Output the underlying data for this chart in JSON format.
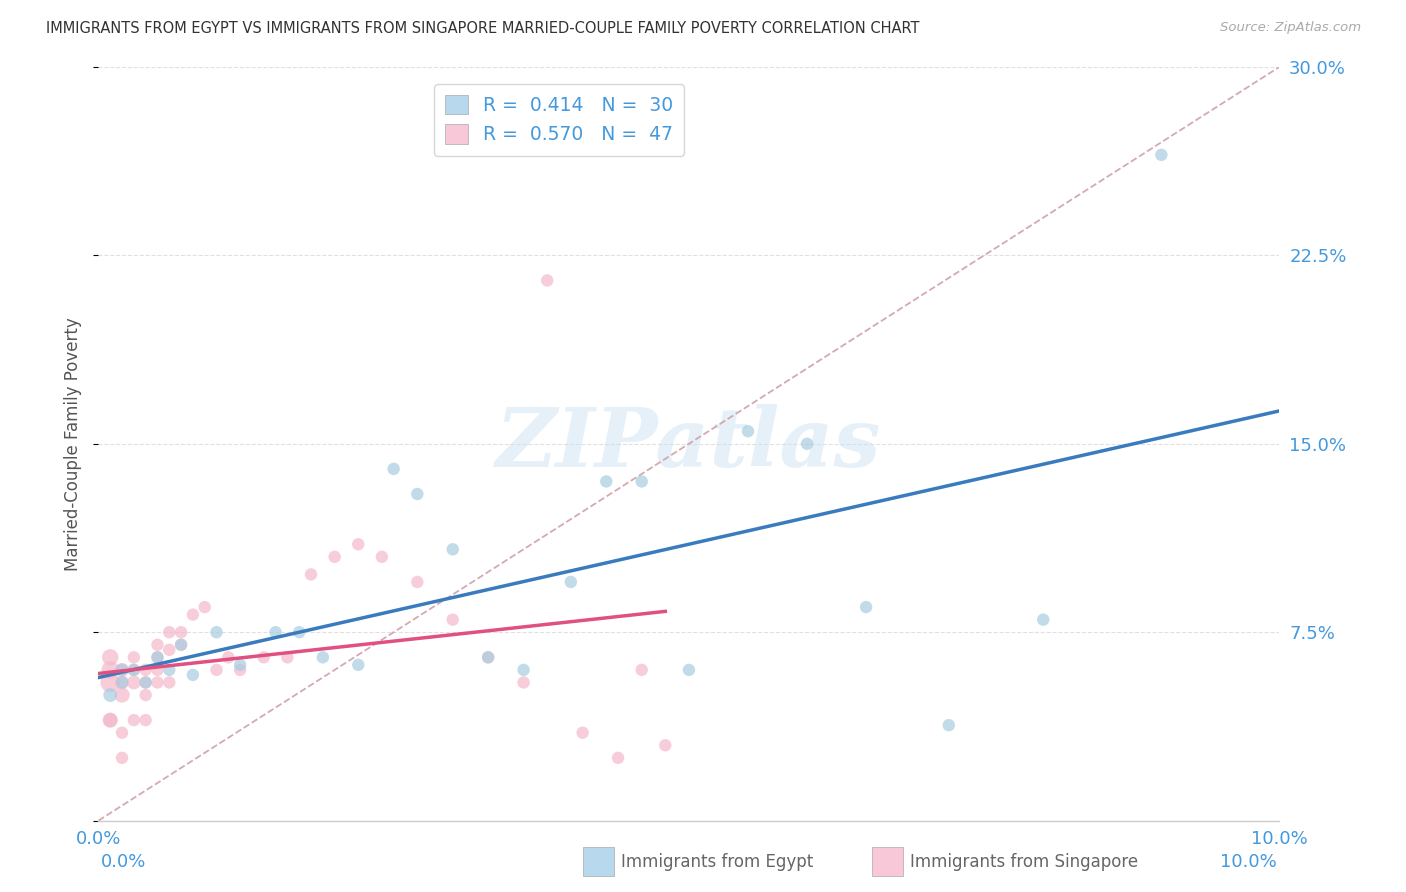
{
  "title": "IMMIGRANTS FROM EGYPT VS IMMIGRANTS FROM SINGAPORE MARRIED-COUPLE FAMILY POVERTY CORRELATION CHART",
  "source": "Source: ZipAtlas.com",
  "ylabel": "Married-Couple Family Poverty",
  "xlim": [
    0.0,
    0.1
  ],
  "ylim": [
    0.0,
    0.3
  ],
  "color_egypt": "#a8cce0",
  "color_singapore": "#f4b8cb",
  "line_color_egypt": "#3a7bbf",
  "line_color_singapore": "#e05080",
  "line_color_dashed": "#d0a0a8",
  "color_legend_egypt_fill": "#b8d8ee",
  "color_legend_singapore_fill": "#f8c8d8",
  "legend_text_color": "#4499dd",
  "R_egypt": 0.414,
  "N_egypt": 30,
  "R_singapore": 0.57,
  "N_singapore": 47,
  "egypt_x": [
    0.001,
    0.002,
    0.002,
    0.003,
    0.004,
    0.005,
    0.006,
    0.007,
    0.008,
    0.01,
    0.012,
    0.015,
    0.017,
    0.019,
    0.022,
    0.025,
    0.027,
    0.03,
    0.033,
    0.036,
    0.04,
    0.043,
    0.046,
    0.05,
    0.055,
    0.06,
    0.065,
    0.072,
    0.08,
    0.09
  ],
  "egypt_y": [
    0.05,
    0.055,
    0.06,
    0.06,
    0.055,
    0.065,
    0.06,
    0.07,
    0.058,
    0.075,
    0.062,
    0.075,
    0.075,
    0.065,
    0.062,
    0.14,
    0.13,
    0.108,
    0.065,
    0.06,
    0.095,
    0.135,
    0.135,
    0.06,
    0.155,
    0.15,
    0.085,
    0.038,
    0.08,
    0.265
  ],
  "egypt_size": [
    100,
    80,
    80,
    80,
    80,
    80,
    80,
    80,
    80,
    80,
    80,
    80,
    80,
    80,
    80,
    80,
    80,
    80,
    80,
    80,
    80,
    80,
    80,
    80,
    80,
    80,
    80,
    80,
    80,
    80
  ],
  "singapore_x": [
    0.001,
    0.001,
    0.001,
    0.001,
    0.001,
    0.002,
    0.002,
    0.002,
    0.002,
    0.002,
    0.003,
    0.003,
    0.003,
    0.003,
    0.004,
    0.004,
    0.004,
    0.004,
    0.005,
    0.005,
    0.005,
    0.005,
    0.006,
    0.006,
    0.006,
    0.007,
    0.007,
    0.008,
    0.009,
    0.01,
    0.011,
    0.012,
    0.014,
    0.016,
    0.018,
    0.02,
    0.022,
    0.024,
    0.027,
    0.03,
    0.033,
    0.036,
    0.038,
    0.041,
    0.044,
    0.046,
    0.048
  ],
  "singapore_y": [
    0.055,
    0.06,
    0.065,
    0.04,
    0.04,
    0.05,
    0.055,
    0.06,
    0.035,
    0.025,
    0.055,
    0.06,
    0.065,
    0.04,
    0.05,
    0.055,
    0.06,
    0.04,
    0.055,
    0.06,
    0.065,
    0.07,
    0.055,
    0.068,
    0.075,
    0.07,
    0.075,
    0.082,
    0.085,
    0.06,
    0.065,
    0.06,
    0.065,
    0.065,
    0.098,
    0.105,
    0.11,
    0.105,
    0.095,
    0.08,
    0.065,
    0.055,
    0.215,
    0.035,
    0.025,
    0.06,
    0.03
  ],
  "singapore_size": [
    200,
    160,
    140,
    120,
    100,
    120,
    100,
    100,
    80,
    80,
    100,
    80,
    80,
    80,
    80,
    80,
    80,
    80,
    80,
    80,
    80,
    80,
    80,
    80,
    80,
    80,
    80,
    80,
    80,
    80,
    80,
    80,
    80,
    80,
    80,
    80,
    80,
    80,
    80,
    80,
    80,
    80,
    80,
    80,
    80,
    80,
    80
  ],
  "watermark": "ZIPatlas",
  "background_color": "#ffffff",
  "grid_color": "#dddddd",
  "tick_label_color": "#4499dd",
  "title_color": "#333333",
  "ylabel_color": "#555555"
}
